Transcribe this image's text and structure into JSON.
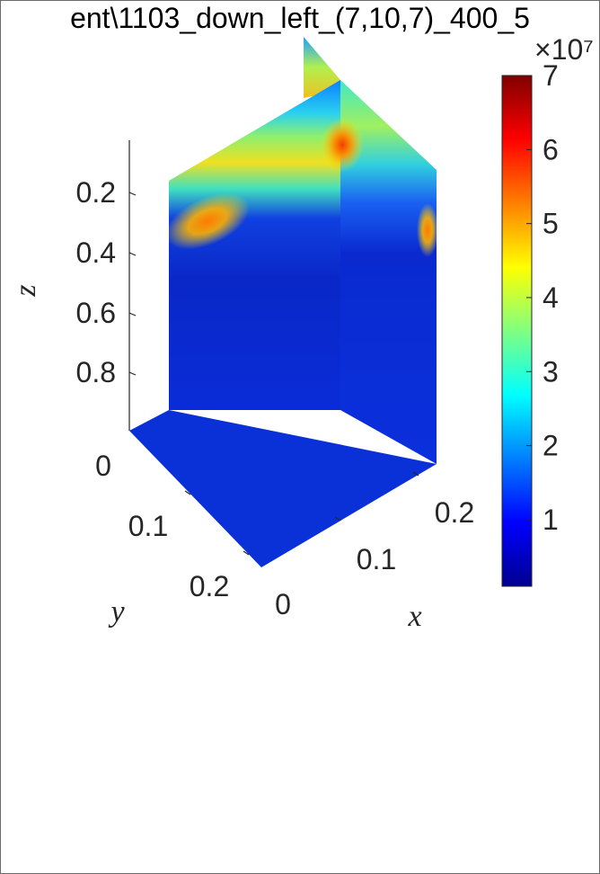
{
  "chart_data": {
    "type": "heatmap",
    "subtype": "3d-slice",
    "title": "ent\\1103_down_left_(7,10,7)_400_5",
    "xlabel": "x",
    "ylabel": "y",
    "zlabel": "z",
    "z_direction": "reversed",
    "colormap": "jet",
    "colorbar": {
      "ticks": [
        "1",
        "2",
        "3",
        "4",
        "5",
        "6",
        "7"
      ],
      "exponent_label": "×10⁷",
      "range": [
        0.1,
        7
      ]
    },
    "x_ticks": [
      "0",
      "0.1",
      "0.2"
    ],
    "y_ticks": [
      "0",
      "0.1",
      "0.2"
    ],
    "z_ticks": [
      "0.2",
      "0.4",
      "0.6",
      "0.8"
    ],
    "slices": [
      {
        "plane": "x=0.245 (back wall, upper edge visible)",
        "peak_value": 5.0
      },
      {
        "plane": "y=0.245 (front wall)",
        "peak_value": 5.5,
        "hotspot_z": 0.35
      },
      {
        "plane": "x=0.245 (right wall)",
        "peak_value": 6.0,
        "hotspot_z": 0.15
      },
      {
        "plane": "z=1.0 (floor)",
        "mean_value": 0.6
      }
    ]
  }
}
